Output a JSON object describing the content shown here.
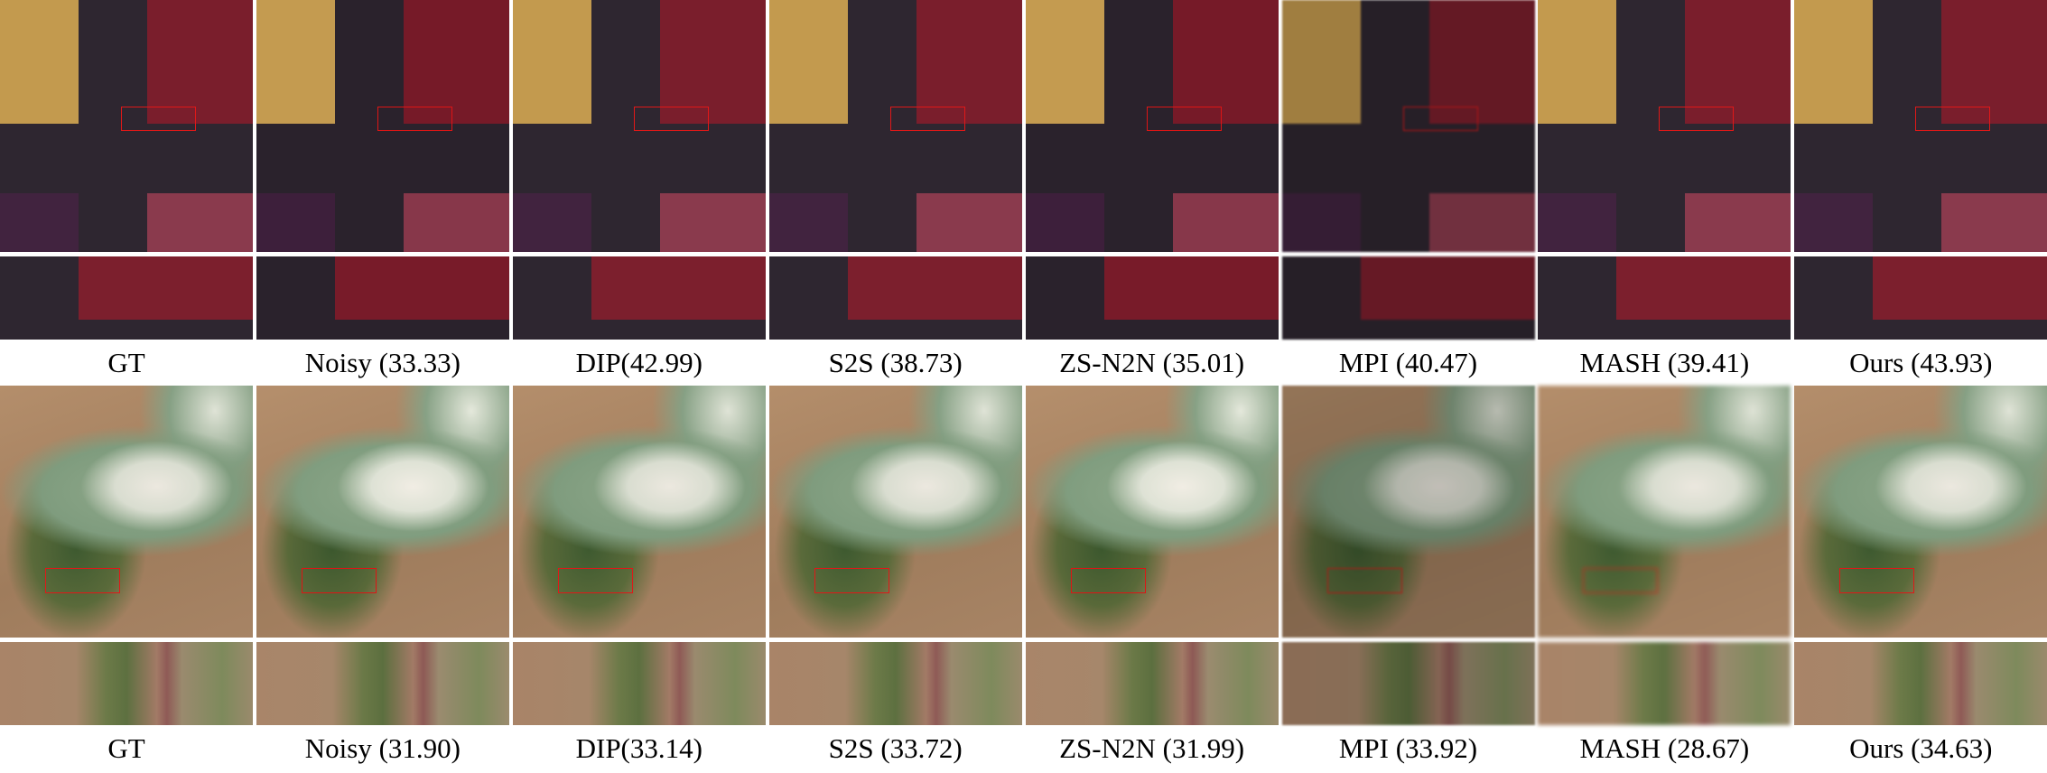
{
  "figure": {
    "rows": [
      {
        "captions": [
          "GT",
          "Noisy (33.33)",
          "DIP(42.99)",
          "S2S (38.73)",
          "ZS-N2N (35.01)",
          "MPI (40.47)",
          "MASH (39.41)",
          "Ours (43.93)"
        ]
      },
      {
        "captions": [
          "GT",
          "Noisy (31.90)",
          "DIP(33.14)",
          "S2S (33.72)",
          "ZS-N2N (31.99)",
          "MPI (33.92)",
          "MASH (28.67)",
          "Ours (34.63)"
        ]
      }
    ]
  }
}
